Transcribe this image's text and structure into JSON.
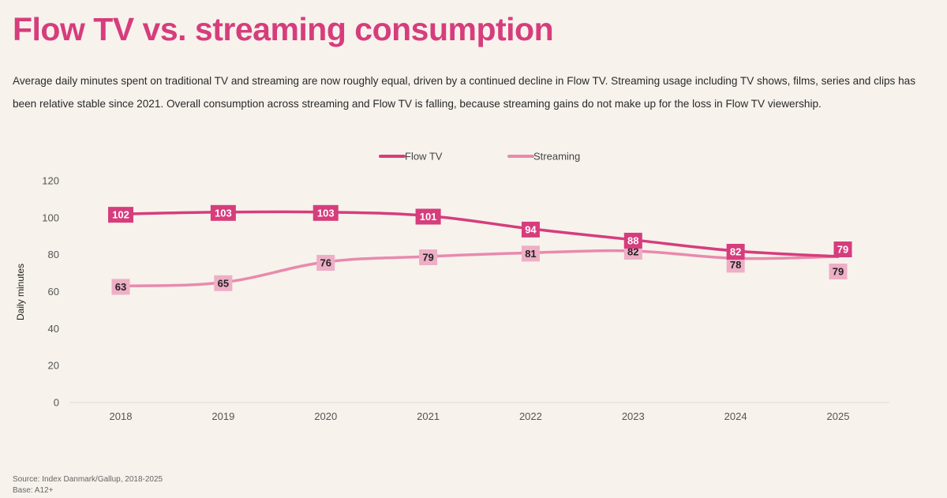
{
  "title": "Flow TV vs. streaming consumption",
  "subtitle": "Average daily minutes spent on traditional TV and streaming are now roughly equal, driven by a continued decline in Flow TV. Streaming usage including TV shows, films, series and clips has been relative stable since 2021. Overall consumption across streaming and Flow TV is falling, because streaming gains do not make up for the loss in Flow TV viewership.",
  "footer": {
    "source": "Source: Index Danmark/Gallup, 2018-2025",
    "base": "Base: A12+"
  },
  "chart_data": {
    "type": "line",
    "x": [
      "2018",
      "2019",
      "2020",
      "2021",
      "2022",
      "2023",
      "2024",
      "2025"
    ],
    "series": [
      {
        "name": "Flow TV",
        "color": "#d63d7c",
        "label_text_color": "#ffffff",
        "values": [
          102,
          103,
          103,
          101,
          94,
          88,
          82,
          79
        ]
      },
      {
        "name": "Streaming",
        "color": "#e88aad",
        "label_fill": "#eeaec6",
        "label_text_color": "#222222",
        "values": [
          63,
          65,
          76,
          79,
          81,
          82,
          78,
          79
        ]
      }
    ],
    "xlabel": "",
    "ylabel": "Daily minutes",
    "ylim": [
      0,
      120
    ],
    "yticks": [
      0,
      20,
      40,
      60,
      80,
      100,
      120
    ],
    "legend_position": "top-center",
    "grid": false,
    "data_labels": true
  }
}
